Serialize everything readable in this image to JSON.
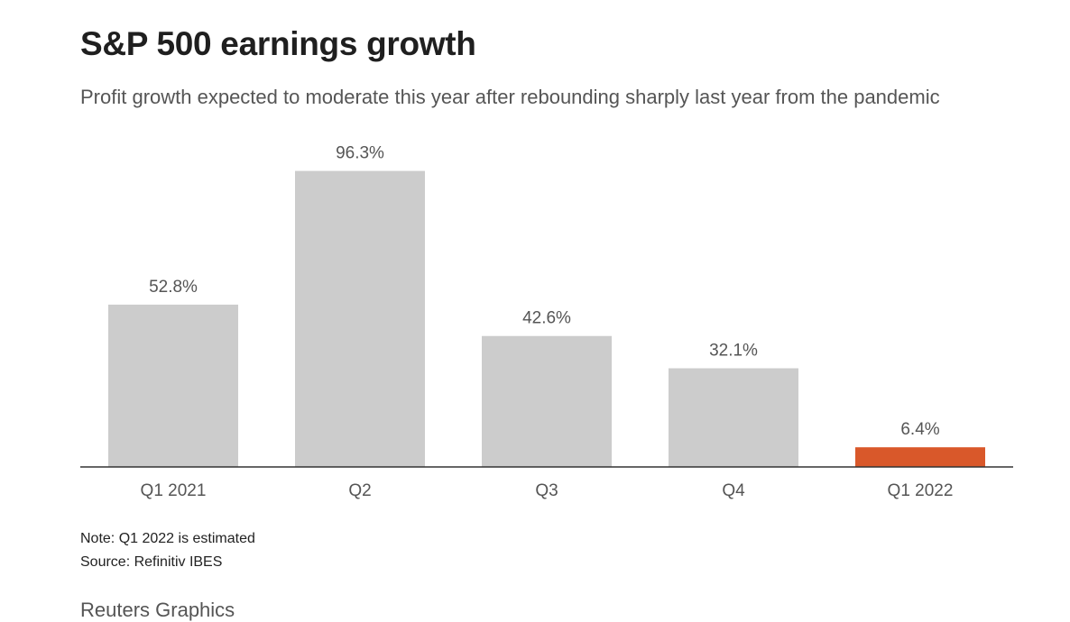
{
  "chart_data": {
    "type": "bar",
    "title": "S&P 500 earnings growth",
    "subtitle": "Profit growth expected to moderate this year after rebounding sharply last year from the pandemic",
    "categories": [
      "Q1 2021",
      "Q2",
      "Q3",
      "Q4",
      "Q1 2022"
    ],
    "values": [
      52.8,
      96.3,
      42.6,
      32.1,
      6.4
    ],
    "data_labels": [
      "52.8%",
      "96.3%",
      "42.6%",
      "32.1%",
      "6.4%"
    ],
    "highlight_index": 4,
    "xlabel": "",
    "ylabel": "",
    "ylim": [
      0,
      100
    ],
    "grid": false,
    "legend": "none"
  },
  "colors": {
    "bar": "#cccccc",
    "highlight": "#d9582a",
    "axis": "#333333",
    "label": "#555555"
  },
  "footer": {
    "note": "Note: Q1 2022 is estimated",
    "source": "Source: Refinitiv IBES",
    "credit": "Reuters Graphics"
  }
}
